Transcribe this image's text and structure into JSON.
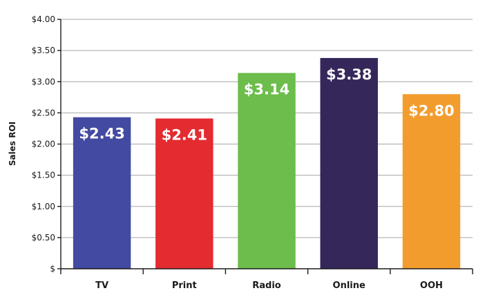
{
  "chart_data": {
    "type": "bar",
    "title": "",
    "xlabel": "",
    "ylabel": "Sales ROI",
    "categories": [
      "TV",
      "Print",
      "Radio",
      "Online",
      "OOH"
    ],
    "values": [
      2.43,
      2.41,
      3.14,
      3.38,
      2.8
    ],
    "data_labels": [
      "$2.43",
      "$2.41",
      "$3.14",
      "$3.38",
      "$2.80"
    ],
    "colors": [
      "#434aa1",
      "#e32b30",
      "#6cbd4b",
      "#35275a",
      "#f39c2e"
    ],
    "ylim": [
      0,
      4
    ],
    "yticks": [
      0,
      0.5,
      1,
      1.5,
      2,
      2.5,
      3,
      3.5,
      4
    ],
    "ytick_labels": [
      "$",
      "$0.50",
      "$1.00",
      "$1.50",
      "$2.00",
      "$2.50",
      "$3.00",
      "$3.50",
      "$4.00"
    ],
    "grid": true,
    "legend": "none"
  }
}
